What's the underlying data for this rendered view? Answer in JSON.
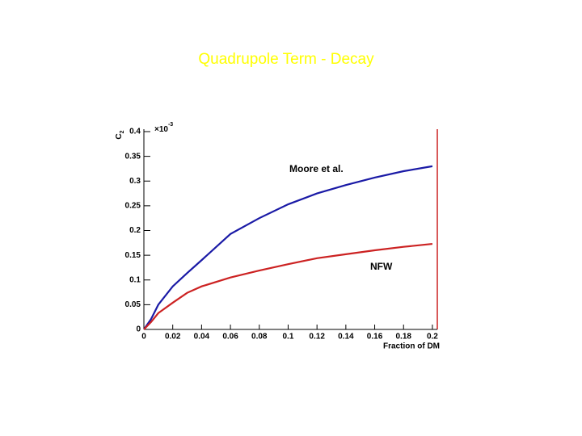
{
  "chart_data": {
    "type": "line",
    "title": "Quadrupole Term - Decay",
    "xlabel": "Fraction of DM",
    "ylabel": "C",
    "ylabel_subscript": "2",
    "y_multiplier": "×10",
    "y_multiplier_exponent": "-3",
    "x": [
      0,
      0.005,
      0.01,
      0.02,
      0.03,
      0.04,
      0.06,
      0.08,
      0.1,
      0.12,
      0.14,
      0.16,
      0.18,
      0.2
    ],
    "series": [
      {
        "name": "Moore et al.",
        "color": "#1a1aa6",
        "values": [
          0,
          0.021,
          0.05,
          0.087,
          0.114,
          0.14,
          0.193,
          0.225,
          0.253,
          0.275,
          0.292,
          0.307,
          0.32,
          0.33
        ]
      },
      {
        "name": "NFW",
        "color": "#cc2222",
        "values": [
          0,
          0.015,
          0.033,
          0.054,
          0.074,
          0.087,
          0.105,
          0.119,
          0.132,
          0.144,
          0.152,
          0.16,
          0.167,
          0.173
        ]
      }
    ],
    "xlim": [
      0,
      0.2034
    ],
    "ylim": [
      0,
      0.4
    ],
    "xticks": [
      0,
      0.02,
      0.04,
      0.06,
      0.08,
      0.1,
      0.12,
      0.14,
      0.16,
      0.18,
      0.2
    ],
    "yticks": [
      0,
      0.05,
      0.1,
      0.15,
      0.2,
      0.25,
      0.3,
      0.35,
      0.4
    ]
  }
}
